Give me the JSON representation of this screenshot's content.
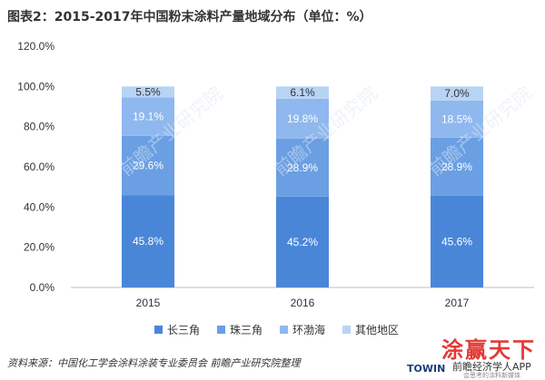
{
  "title": "图表2：2015-2017年中国粉末涂料产量地域分布（单位：%）",
  "source": "资料来源：中国化工学会涂料涂装专业委员会 前瞻产业研究院整理",
  "watermark": "前瞻产业研究院",
  "brand": {
    "logo_text": "涂赢天下",
    "towin": "TOWIN",
    "app_text": "前瞻经济学人APP",
    "tagline": "会思考的涂料新媒体"
  },
  "chart_data": {
    "type": "bar",
    "stacked": true,
    "categories": [
      "2015",
      "2016",
      "2017"
    ],
    "series": [
      {
        "name": "长三角",
        "values": [
          45.8,
          45.2,
          45.6
        ],
        "labels": [
          "45.8%",
          "45.2%",
          "45.6%"
        ],
        "color": "#4a86d8"
      },
      {
        "name": "珠三角",
        "values": [
          29.6,
          28.9,
          28.9
        ],
        "labels": [
          "29.6%",
          "28.9%",
          "28.9%"
        ],
        "color": "#6a9fe3"
      },
      {
        "name": "环渤海",
        "values": [
          19.1,
          19.8,
          18.5
        ],
        "labels": [
          "19.1%",
          "19.8%",
          "18.5%"
        ],
        "color": "#8fb8ee"
      },
      {
        "name": "其他地区",
        "values": [
          5.5,
          6.1,
          7.0
        ],
        "labels": [
          "5.5%",
          "6.1%",
          "7.0%"
        ],
        "color": "#b8d4f5"
      }
    ],
    "ylim": [
      0,
      120
    ],
    "yticks": [
      "0.0%",
      "20.0%",
      "40.0%",
      "60.0%",
      "80.0%",
      "100.0%",
      "120.0%"
    ],
    "legend_position": "bottom",
    "grid": false
  }
}
